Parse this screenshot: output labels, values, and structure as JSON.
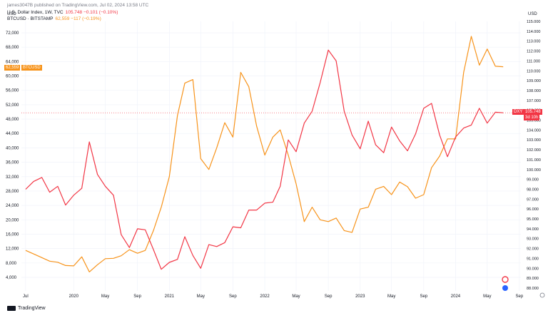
{
  "header": {
    "user_line": "james3047B published on TradingView.com, Jul 02, 2024 13:58 UTC",
    "dxy_name": "U.S. Dollar Index, 1W, TVC",
    "dxy_values": "105.748  −0.101 (−0.10%)",
    "btc_name": "BTCUSD · BITSTAMP",
    "btc_values": "62,559  −117 (−0.19%)"
  },
  "left_axis_label": "USD",
  "right_axis_label": "USD",
  "tags": {
    "btc_price": "62,559",
    "btc_symbol": "BTCUSD",
    "dxy_symbol": "DXY",
    "dxy_price": "105.748",
    "dxy_countdown": "3d 10h"
  },
  "footer": {
    "brand": "TradingView"
  },
  "colors": {
    "btc": "#f7931a",
    "dxy": "#f23645",
    "grid": "#f0f3fa",
    "text": "#131722"
  },
  "chart_data": {
    "type": "line",
    "left_axis": {
      "unit": "USD",
      "ticks": [
        4000,
        8000,
        12000,
        16000,
        20000,
        24000,
        28000,
        32000,
        36000,
        40000,
        44000,
        48000,
        52000,
        56000,
        60000,
        64000,
        68000,
        72000
      ],
      "tick_labels": [
        "4,000",
        "8,000",
        "12,000",
        "16,000",
        "20,000",
        "24,000",
        "28,000",
        "32,000",
        "36,000",
        "40,000",
        "44,000",
        "48,000",
        "52,000",
        "56,000",
        "60,000",
        "64,000",
        "68,000",
        "72,000"
      ]
    },
    "right_axis": {
      "unit": "USD",
      "ticks": [
        88,
        89,
        90,
        91,
        92,
        93,
        94,
        95,
        96,
        97,
        98,
        99,
        100,
        101,
        102,
        103,
        104,
        105,
        106,
        107,
        108,
        109,
        110,
        111,
        112,
        113,
        114,
        115
      ],
      "tick_labels": [
        "88.000",
        "89.000",
        "90.000",
        "91.000",
        "92.000",
        "93.000",
        "94.000",
        "95.000",
        "96.000",
        "97.000",
        "98.000",
        "99.000",
        "100.000",
        "101.000",
        "102.000",
        "103.000",
        "104.000",
        "105.000",
        "106.000",
        "107.000",
        "108.000",
        "109.000",
        "110.000",
        "111.000",
        "112.000",
        "113.000",
        "114.000",
        "115.000"
      ]
    },
    "x_axis": {
      "labels": [
        "Jul",
        "2020",
        "May",
        "Sep",
        "2021",
        "May",
        "Sep",
        "2022",
        "May",
        "Sep",
        "2023",
        "May",
        "Sep",
        "2024",
        "May",
        "Sep"
      ],
      "dates": [
        "2019-07-01",
        "2020-01-01",
        "2020-05-01",
        "2020-09-01",
        "2021-01-01",
        "2021-05-01",
        "2021-09-01",
        "2022-01-01",
        "2022-05-01",
        "2022-09-01",
        "2023-01-01",
        "2023-05-01",
        "2023-09-01",
        "2024-01-01",
        "2024-05-01",
        "2024-09-01"
      ]
    },
    "series": [
      {
        "name": "BTCUSD",
        "axis": "left",
        "points": [
          [
            "2019-07-01",
            11500
          ],
          [
            "2019-08-01",
            10500
          ],
          [
            "2019-09-01",
            9500
          ],
          [
            "2019-10-01",
            8500
          ],
          [
            "2019-11-01",
            8200
          ],
          [
            "2019-12-01",
            7300
          ],
          [
            "2020-01-01",
            7200
          ],
          [
            "2020-02-01",
            9700
          ],
          [
            "2020-03-01",
            5500
          ],
          [
            "2020-04-01",
            7500
          ],
          [
            "2020-05-01",
            9200
          ],
          [
            "2020-06-01",
            9300
          ],
          [
            "2020-07-01",
            10000
          ],
          [
            "2020-08-01",
            11700
          ],
          [
            "2020-09-01",
            10700
          ],
          [
            "2020-10-01",
            11500
          ],
          [
            "2020-11-01",
            17000
          ],
          [
            "2020-12-01",
            23500
          ],
          [
            "2021-01-01",
            32000
          ],
          [
            "2021-02-01",
            49000
          ],
          [
            "2021-03-01",
            58000
          ],
          [
            "2021-04-01",
            59000
          ],
          [
            "2021-05-01",
            37000
          ],
          [
            "2021-06-01",
            34000
          ],
          [
            "2021-07-01",
            40000
          ],
          [
            "2021-08-01",
            47000
          ],
          [
            "2021-09-01",
            43000
          ],
          [
            "2021-10-01",
            61000
          ],
          [
            "2021-11-01",
            57000
          ],
          [
            "2021-12-01",
            46000
          ],
          [
            "2022-01-01",
            38000
          ],
          [
            "2022-02-01",
            43000
          ],
          [
            "2022-03-01",
            45000
          ],
          [
            "2022-04-01",
            38000
          ],
          [
            "2022-05-01",
            30000
          ],
          [
            "2022-06-01",
            19500
          ],
          [
            "2022-07-01",
            23500
          ],
          [
            "2022-08-01",
            20000
          ],
          [
            "2022-09-01",
            19500
          ],
          [
            "2022-10-01",
            20500
          ],
          [
            "2022-11-01",
            17000
          ],
          [
            "2022-12-01",
            16500
          ],
          [
            "2023-01-01",
            23000
          ],
          [
            "2023-02-01",
            23500
          ],
          [
            "2023-03-01",
            28500
          ],
          [
            "2023-04-01",
            29300
          ],
          [
            "2023-05-01",
            27000
          ],
          [
            "2023-06-01",
            30500
          ],
          [
            "2023-07-01",
            29200
          ],
          [
            "2023-08-01",
            26000
          ],
          [
            "2023-09-01",
            27000
          ],
          [
            "2023-10-01",
            34500
          ],
          [
            "2023-11-01",
            37700
          ],
          [
            "2023-12-01",
            42500
          ],
          [
            "2024-01-01",
            42500
          ],
          [
            "2024-02-01",
            61000
          ],
          [
            "2024-03-01",
            71000
          ],
          [
            "2024-04-01",
            63000
          ],
          [
            "2024-05-01",
            67500
          ],
          [
            "2024-06-01",
            62700
          ],
          [
            "2024-07-01",
            62559
          ]
        ]
      },
      {
        "name": "DXY",
        "axis": "right",
        "points": [
          [
            "2019-07-01",
            98.0
          ],
          [
            "2019-08-01",
            98.8
          ],
          [
            "2019-09-01",
            99.2
          ],
          [
            "2019-10-01",
            97.7
          ],
          [
            "2019-11-01",
            98.3
          ],
          [
            "2019-12-01",
            96.4
          ],
          [
            "2020-01-01",
            97.4
          ],
          [
            "2020-02-01",
            98.1
          ],
          [
            "2020-03-01",
            102.8
          ],
          [
            "2020-04-01",
            99.5
          ],
          [
            "2020-05-01",
            98.3
          ],
          [
            "2020-06-01",
            97.4
          ],
          [
            "2020-07-01",
            93.4
          ],
          [
            "2020-08-01",
            92.1
          ],
          [
            "2020-09-01",
            94.0
          ],
          [
            "2020-10-01",
            93.9
          ],
          [
            "2020-11-01",
            91.9
          ],
          [
            "2020-12-01",
            89.9
          ],
          [
            "2021-01-01",
            90.6
          ],
          [
            "2021-02-01",
            90.9
          ],
          [
            "2021-03-01",
            93.2
          ],
          [
            "2021-04-01",
            91.3
          ],
          [
            "2021-05-01",
            90.0
          ],
          [
            "2021-06-01",
            92.4
          ],
          [
            "2021-07-01",
            92.2
          ],
          [
            "2021-08-01",
            92.6
          ],
          [
            "2021-09-01",
            94.2
          ],
          [
            "2021-10-01",
            94.1
          ],
          [
            "2021-11-01",
            95.9
          ],
          [
            "2021-12-01",
            95.9
          ],
          [
            "2022-01-01",
            96.6
          ],
          [
            "2022-02-01",
            96.7
          ],
          [
            "2022-03-01",
            98.3
          ],
          [
            "2022-04-01",
            103.0
          ],
          [
            "2022-05-01",
            101.8
          ],
          [
            "2022-06-01",
            104.7
          ],
          [
            "2022-07-01",
            105.9
          ],
          [
            "2022-08-01",
            108.8
          ],
          [
            "2022-09-01",
            112.1
          ],
          [
            "2022-10-01",
            111.0
          ],
          [
            "2022-11-01",
            105.9
          ],
          [
            "2022-12-01",
            103.5
          ],
          [
            "2023-01-01",
            102.1
          ],
          [
            "2023-02-01",
            104.9
          ],
          [
            "2023-03-01",
            102.5
          ],
          [
            "2023-04-01",
            101.7
          ],
          [
            "2023-05-01",
            104.3
          ],
          [
            "2023-06-01",
            102.9
          ],
          [
            "2023-07-01",
            101.9
          ],
          [
            "2023-08-01",
            103.6
          ],
          [
            "2023-09-01",
            106.2
          ],
          [
            "2023-10-01",
            106.7
          ],
          [
            "2023-11-01",
            103.5
          ],
          [
            "2023-12-01",
            101.3
          ],
          [
            "2024-01-01",
            103.3
          ],
          [
            "2024-02-01",
            104.2
          ],
          [
            "2024-03-01",
            104.5
          ],
          [
            "2024-04-01",
            106.2
          ],
          [
            "2024-05-01",
            104.7
          ],
          [
            "2024-06-01",
            105.8
          ],
          [
            "2024-07-01",
            105.748
          ]
        ]
      }
    ]
  }
}
